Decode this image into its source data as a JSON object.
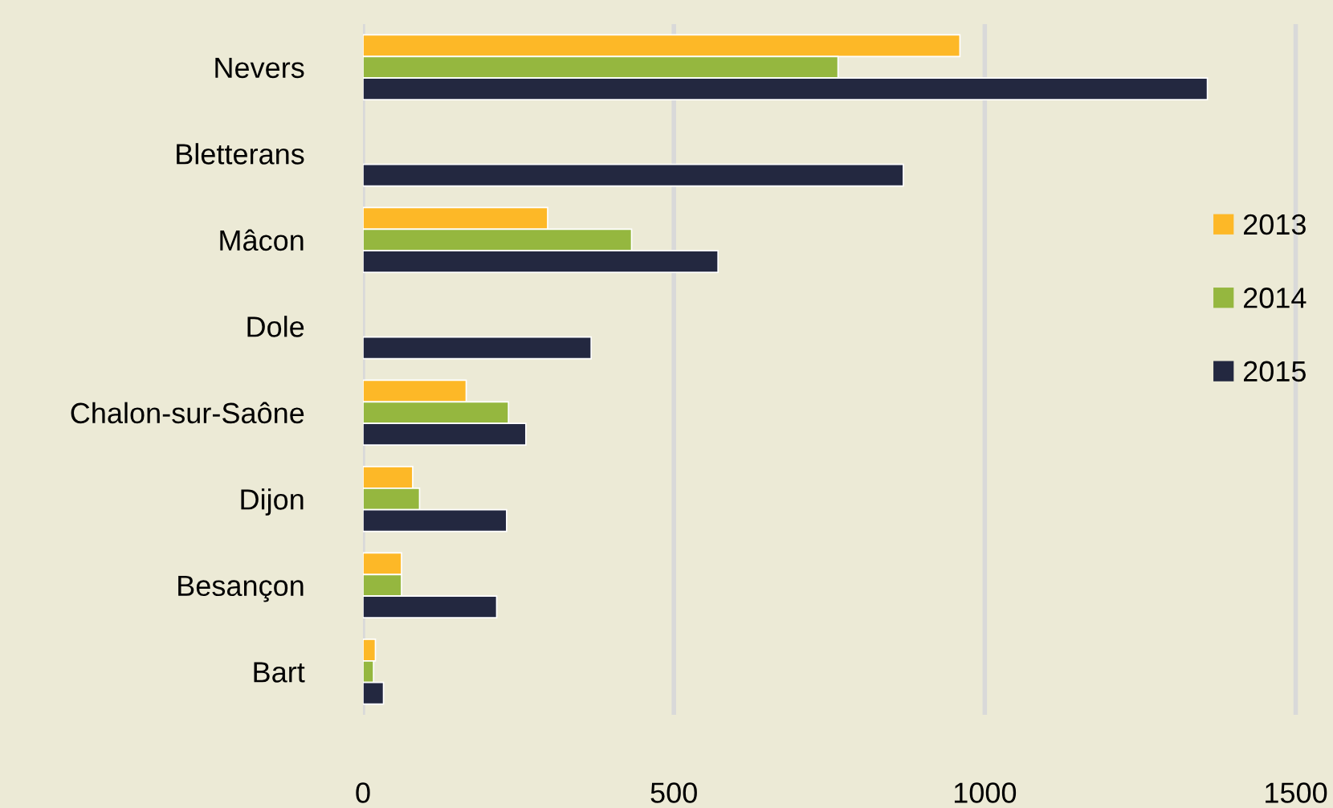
{
  "chart_data": {
    "type": "bar",
    "orientation": "horizontal",
    "categories": [
      "Nevers",
      "Bletterans",
      "Mâcon",
      "Dole",
      "Chalon-sur-Saône",
      "Dijon",
      "Besançon",
      "Bart"
    ],
    "series": [
      {
        "name": "2013",
        "color": "#fdb827",
        "values": [
          960,
          null,
          297,
          null,
          166,
          80,
          62,
          20
        ]
      },
      {
        "name": "2014",
        "color": "#95b73f",
        "values": [
          764,
          null,
          432,
          null,
          234,
          91,
          62,
          17
        ]
      },
      {
        "name": "2015",
        "color": "#232840",
        "values": [
          1358,
          869,
          571,
          367,
          262,
          231,
          215,
          33
        ]
      }
    ],
    "xlim": [
      0,
      1560
    ],
    "xticks": [
      0,
      500,
      1000,
      1500
    ],
    "grid": "x",
    "legend": "right"
  }
}
